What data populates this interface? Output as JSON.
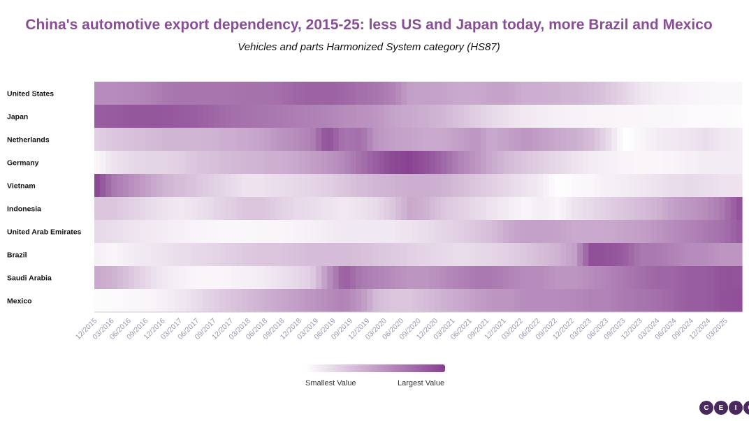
{
  "chart_data": {
    "type": "heatmap",
    "title": "China's automotive export dependency, 2015-25: less US and Japan today, more Brazil and Mexico",
    "subtitle": "Vehicles and parts Harmonized System category (HS87)",
    "rows": [
      "United States",
      "Japan",
      "Netherlands",
      "Germany",
      "Vietnam",
      "Indonesia",
      "United Arab Emirates",
      "Brazil",
      "Saudi Arabia",
      "Mexico"
    ],
    "x_start": "12/2015",
    "x_end": "05/2025",
    "x_tick_labels": [
      "12/2015",
      "03/2016",
      "06/2016",
      "09/2016",
      "12/2016",
      "03/2017",
      "06/2017",
      "09/2017",
      "12/2017",
      "03/2018",
      "06/2018",
      "09/2018",
      "12/2018",
      "03/2019",
      "06/2019",
      "09/2019",
      "12/2019",
      "03/2020",
      "06/2020",
      "09/2020",
      "12/2020",
      "03/2021",
      "06/2021",
      "09/2021",
      "12/2021",
      "03/2022",
      "06/2022",
      "09/2022",
      "12/2022",
      "03/2023",
      "06/2023",
      "09/2023",
      "12/2023",
      "03/2024",
      "06/2024",
      "09/2024",
      "12/2024",
      "03/2025"
    ],
    "value_scale": "relative intensity 0 (smallest) to 1 (largest), estimated",
    "row_values": [
      [
        0.6,
        0.6,
        0.62,
        0.64,
        0.7,
        0.72,
        0.72,
        0.72,
        0.72,
        0.74,
        0.74,
        0.75,
        0.8,
        0.82,
        0.82,
        0.8,
        0.75,
        0.72,
        0.65,
        0.5,
        0.5,
        0.48,
        0.45,
        0.45,
        0.48,
        0.48,
        0.42,
        0.42,
        0.4,
        0.38,
        0.35,
        0.3,
        0.22,
        0.14,
        0.1,
        0.08,
        0.06,
        0.05,
        0.04,
        0.04
      ],
      [
        0.85,
        0.86,
        0.88,
        0.88,
        0.88,
        0.86,
        0.84,
        0.8,
        0.76,
        0.74,
        0.72,
        0.7,
        0.68,
        0.66,
        0.64,
        0.6,
        0.58,
        0.55,
        0.48,
        0.45,
        0.42,
        0.38,
        0.32,
        0.26,
        0.2,
        0.16,
        0.12,
        0.1,
        0.08,
        0.07,
        0.06,
        0.06,
        0.05,
        0.05,
        0.04,
        0.04,
        0.03,
        0.03,
        0.03,
        0.02
      ],
      [
        0.25,
        0.3,
        0.32,
        0.35,
        0.38,
        0.38,
        0.38,
        0.4,
        0.42,
        0.45,
        0.48,
        0.55,
        0.6,
        0.65,
        0.92,
        0.72,
        0.75,
        0.55,
        0.5,
        0.48,
        0.45,
        0.45,
        0.5,
        0.55,
        0.45,
        0.5,
        0.55,
        0.5,
        0.45,
        0.42,
        0.35,
        0.2,
        0.0,
        0.05,
        0.1,
        0.12,
        0.14,
        0.18,
        0.12,
        0.1
      ],
      [
        0.05,
        0.15,
        0.2,
        0.22,
        0.22,
        0.25,
        0.3,
        0.33,
        0.36,
        0.38,
        0.4,
        0.42,
        0.45,
        0.5,
        0.55,
        0.62,
        0.75,
        0.85,
        0.95,
        0.98,
        0.9,
        0.8,
        0.65,
        0.55,
        0.45,
        0.35,
        0.3,
        0.25,
        0.2,
        0.15,
        0.1,
        0.08,
        0.06,
        0.05,
        0.05,
        0.06,
        0.08,
        0.1,
        0.1,
        0.1
      ],
      [
        0.95,
        0.7,
        0.6,
        0.5,
        0.4,
        0.35,
        0.3,
        0.25,
        0.2,
        0.15,
        0.15,
        0.18,
        0.2,
        0.22,
        0.25,
        0.3,
        0.35,
        0.38,
        0.4,
        0.42,
        0.42,
        0.4,
        0.35,
        0.3,
        0.25,
        0.2,
        0.15,
        0.1,
        0.0,
        0.03,
        0.05,
        0.08,
        0.1,
        0.12,
        0.15,
        0.18,
        0.2,
        0.18,
        0.15,
        0.15
      ],
      [
        0.3,
        0.3,
        0.25,
        0.2,
        0.15,
        0.12,
        0.15,
        0.2,
        0.25,
        0.3,
        0.3,
        0.25,
        0.2,
        0.18,
        0.15,
        0.12,
        0.15,
        0.2,
        0.3,
        0.45,
        0.4,
        0.3,
        0.25,
        0.2,
        0.15,
        0.1,
        0.05,
        0.1,
        0.05,
        0.15,
        0.2,
        0.25,
        0.3,
        0.35,
        0.4,
        0.5,
        0.55,
        0.6,
        0.7,
        0.9
      ],
      [
        0.2,
        0.18,
        0.15,
        0.12,
        0.1,
        0.08,
        0.06,
        0.05,
        0.04,
        0.04,
        0.05,
        0.05,
        0.06,
        0.08,
        0.1,
        0.12,
        0.12,
        0.12,
        0.12,
        0.15,
        0.18,
        0.22,
        0.25,
        0.3,
        0.35,
        0.45,
        0.5,
        0.5,
        0.48,
        0.45,
        0.45,
        0.45,
        0.48,
        0.5,
        0.55,
        0.6,
        0.65,
        0.7,
        0.75,
        0.85
      ],
      [
        0.08,
        0.05,
        0.1,
        0.12,
        0.15,
        0.18,
        0.2,
        0.22,
        0.25,
        0.28,
        0.3,
        0.3,
        0.32,
        0.35,
        0.35,
        0.35,
        0.33,
        0.3,
        0.28,
        0.25,
        0.22,
        0.2,
        0.18,
        0.2,
        0.22,
        0.25,
        0.3,
        0.35,
        0.4,
        0.5,
        0.92,
        0.9,
        0.85,
        0.7,
        0.7,
        0.65,
        0.6,
        0.6,
        0.55,
        0.55
      ],
      [
        0.45,
        0.4,
        0.3,
        0.2,
        0.12,
        0.08,
        0.05,
        0.05,
        0.06,
        0.08,
        0.1,
        0.15,
        0.2,
        0.25,
        0.55,
        0.85,
        0.7,
        0.65,
        0.6,
        0.55,
        0.55,
        0.6,
        0.65,
        0.7,
        0.7,
        0.65,
        0.6,
        0.6,
        0.55,
        0.55,
        0.6,
        0.65,
        0.7,
        0.75,
        0.8,
        0.8,
        0.85,
        0.85,
        0.9,
        0.9
      ],
      [
        0.02,
        0.03,
        0.04,
        0.05,
        0.08,
        0.12,
        0.18,
        0.25,
        0.3,
        0.35,
        0.4,
        0.45,
        0.5,
        0.55,
        0.6,
        0.65,
        0.55,
        0.35,
        0.3,
        0.3,
        0.35,
        0.4,
        0.45,
        0.5,
        0.55,
        0.55,
        0.6,
        0.6,
        0.6,
        0.62,
        0.65,
        0.65,
        0.7,
        0.72,
        0.75,
        0.8,
        0.85,
        0.85,
        0.9,
        0.92
      ]
    ],
    "legend": {
      "min_label": "Smallest Value",
      "max_label": "Largest Value"
    },
    "color_low": "#ffffff",
    "color_high": "#86408f"
  },
  "brand": {
    "logo_letters": [
      "C",
      "E",
      "I",
      "C"
    ]
  }
}
